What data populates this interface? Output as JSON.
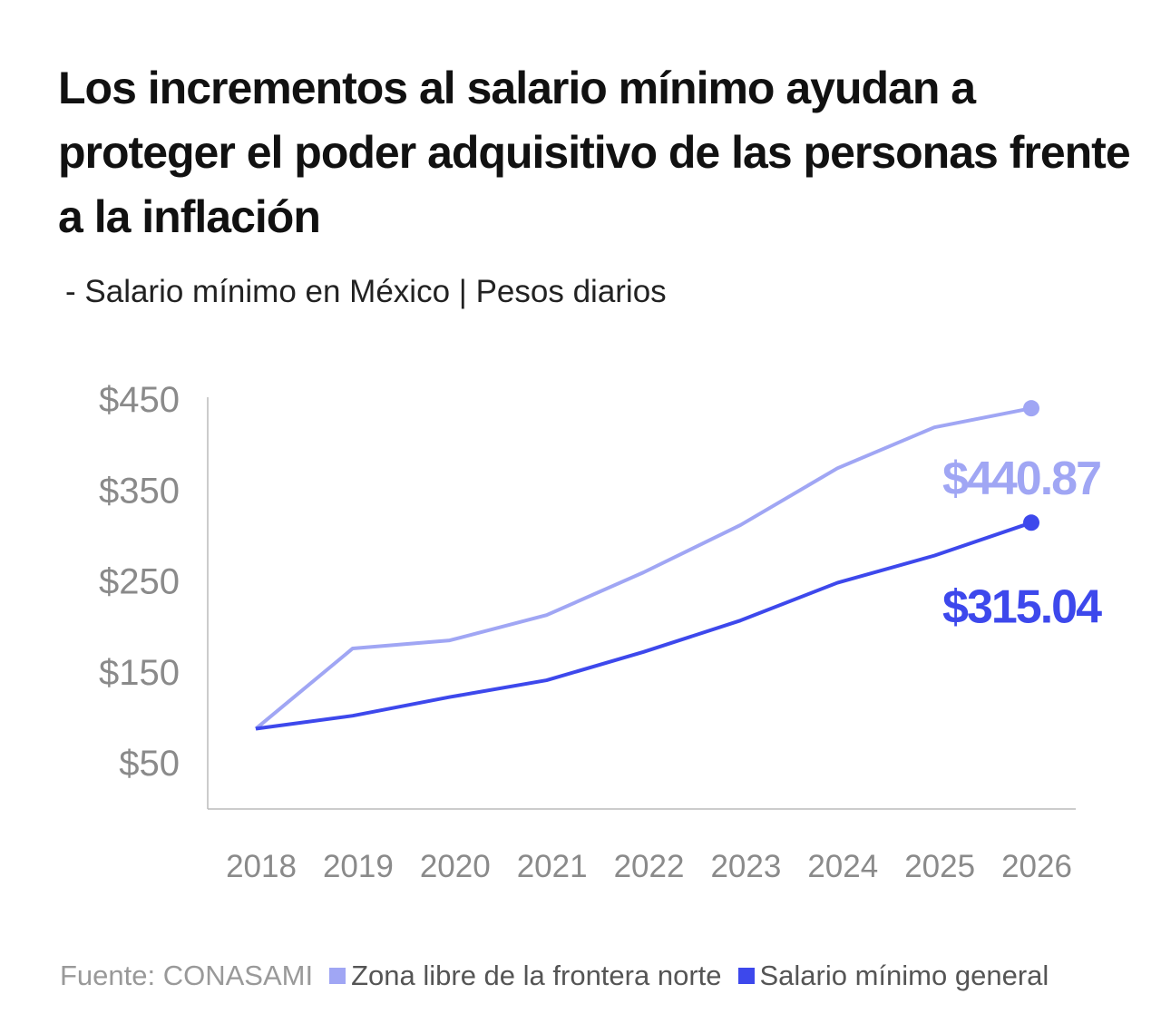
{
  "title": "Los incrementos al salario mínimo ayudan a proteger el poder adquisitivo de las personas frente a la inflación",
  "subtitle": "-  Salario mínimo en México | Pesos diarios",
  "footer": {
    "source": "Fuente: CONASAMI"
  },
  "chart_data": {
    "type": "line",
    "title": "Los incrementos al salario mínimo ayudan a proteger el poder adquisitivo de las personas frente a la inflación",
    "subtitle": "Salario mínimo en México | Pesos diarios",
    "x": [
      "2018",
      "2019",
      "2020",
      "2021",
      "2022",
      "2023",
      "2024",
      "2025",
      "2026"
    ],
    "ylim": [
      50,
      450
    ],
    "yticks": [
      50,
      150,
      250,
      350,
      450
    ],
    "ytick_labels": [
      "$50",
      "$150",
      "$250",
      "$350",
      "$450"
    ],
    "grid": false,
    "legend": "bottom",
    "series": [
      {
        "name": "Zona libre de la frontera norte",
        "color": "#A0A6F4",
        "values": [
          88.36,
          176.72,
          185.56,
          213.39,
          260.34,
          312.41,
          374.89,
          419.88,
          440.87
        ],
        "end_label": "$440.87"
      },
      {
        "name": "Salario mínimo general",
        "color": "#3D48EC",
        "values": [
          88.36,
          102.68,
          123.22,
          141.7,
          172.87,
          207.44,
          248.93,
          278.8,
          315.04
        ],
        "end_label": "$315.04"
      }
    ]
  }
}
